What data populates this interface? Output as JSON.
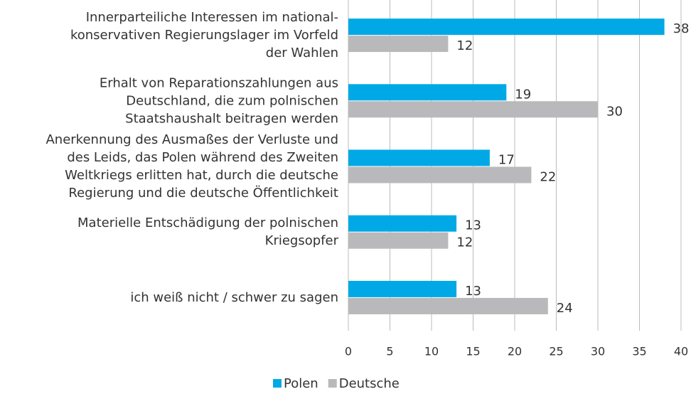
{
  "chart_data": {
    "type": "hbar",
    "categories": [
      [
        "Innerparteiliche Interessen im national-",
        "konservativen Regierungslager im Vorfeld",
        "der Wahlen"
      ],
      [
        "Erhalt von Reparationszahlungen aus",
        "Deutschland, die zum polnischen",
        "Staatshaushalt beitragen werden"
      ],
      [
        "Anerkennung des Ausmaßes der Verluste und",
        "des Leids, das Polen während des Zweiten",
        "Weltkriegs erlitten hat, durch die deutsche",
        "Regierung und die deutsche Öffentlichkeit"
      ],
      [
        "Materielle Entschädigung der polnischen",
        "Kriegsopfer"
      ],
      [
        "ich weiß nicht / schwer zu sagen"
      ]
    ],
    "series": [
      {
        "name": "Polen",
        "color": "#00a9e6",
        "values": [
          38,
          19,
          17,
          13,
          13
        ]
      },
      {
        "name": "Deutsche",
        "color": "#b9b9bb",
        "values": [
          12,
          30,
          22,
          12,
          24
        ]
      }
    ],
    "xlim": [
      0,
      40
    ],
    "xticks": [
      0,
      5,
      10,
      15,
      20,
      25,
      30,
      35,
      40
    ],
    "grid": true,
    "legend": "bottom"
  }
}
